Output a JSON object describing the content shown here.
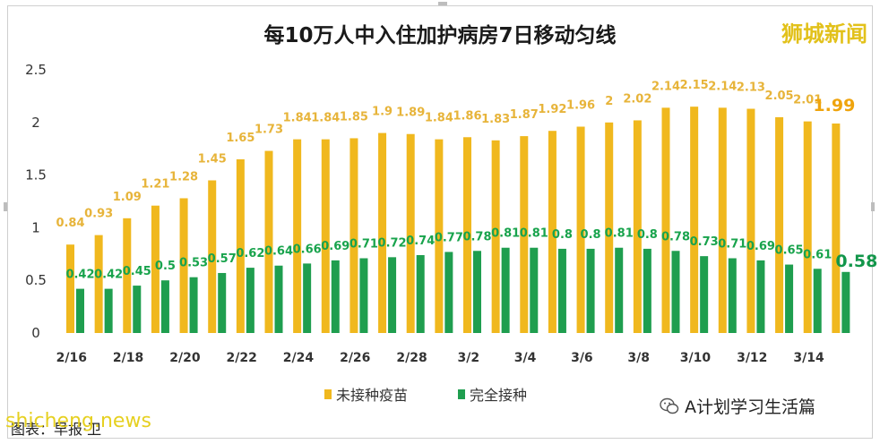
{
  "title": "每10万人中入住加护病房7日移动匀线",
  "watermark_top": "狮城新闻",
  "watermark_bottom": "shicheng.news",
  "wechat_label": "A计划学习生活篇",
  "source_text": "图表：早报·卫",
  "colors": {
    "unvaccinated": "#f0b81e",
    "vaccinated": "#1f9e4f"
  },
  "chart_data": {
    "type": "bar",
    "title": "每10万人中入住加护病房7日移动匀线",
    "ylim": [
      0,
      2.5
    ],
    "yticks": [
      "0",
      "0.5",
      "1",
      "1.5",
      "2",
      "2.5"
    ],
    "categories": [
      "2/16",
      "2/17",
      "2/18",
      "2/19",
      "2/20",
      "2/21",
      "2/22",
      "2/23",
      "2/24",
      "2/25",
      "2/26",
      "2/27",
      "2/28",
      "3/1",
      "3/2",
      "3/3",
      "3/4",
      "3/5",
      "3/6",
      "3/7",
      "3/8",
      "3/9",
      "3/10",
      "3/11",
      "3/12",
      "3/13",
      "3/14",
      "3/15"
    ],
    "x_tick_labels": [
      "2/16",
      "2/18",
      "2/20",
      "2/22",
      "2/24",
      "2/26",
      "2/28",
      "3/2",
      "3/4",
      "3/6",
      "3/8",
      "3/10",
      "3/12",
      "3/14"
    ],
    "series": [
      {
        "name": "未接种疫苗",
        "values": [
          0.84,
          0.93,
          1.09,
          1.21,
          1.28,
          1.45,
          1.65,
          1.73,
          1.84,
          1.84,
          1.85,
          1.9,
          1.89,
          1.84,
          1.86,
          1.83,
          1.87,
          1.92,
          1.96,
          2,
          2.02,
          2.14,
          2.15,
          2.14,
          2.13,
          2.05,
          2.01,
          1.99
        ]
      },
      {
        "name": "完全接种",
        "values": [
          0.42,
          0.42,
          0.45,
          0.5,
          0.53,
          0.57,
          0.62,
          0.64,
          0.66,
          0.69,
          0.71,
          0.72,
          0.74,
          0.77,
          0.78,
          0.81,
          0.81,
          0.8,
          0.8,
          0.81,
          0.8,
          0.78,
          0.73,
          0.71,
          0.69,
          0.65,
          0.61,
          0.58
        ]
      }
    ],
    "legend": "bottom"
  }
}
